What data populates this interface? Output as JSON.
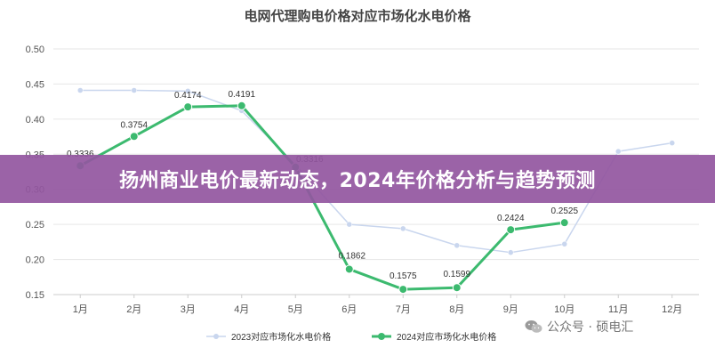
{
  "banner": {
    "text": "扬州商业电价最新动态，2024年价格分析与趋势预测"
  },
  "watermark": {
    "text": "公众号 · 硕电汇",
    "icon": "wechat-icon"
  },
  "chart_data": {
    "type": "line",
    "title": "电网代理购电价格对应市场化水电价格",
    "xlabel": "",
    "ylabel": "",
    "categories": [
      "1月",
      "2月",
      "3月",
      "4月",
      "5月",
      "6月",
      "7月",
      "8月",
      "9月",
      "10月",
      "11月",
      "12月"
    ],
    "ylim": [
      0.15,
      0.5
    ],
    "yticks": [
      "0.15",
      "0.20",
      "0.25",
      "0.30",
      "0.35",
      "0.40",
      "0.45",
      "0.50"
    ],
    "grid": true,
    "legend_position": "bottom",
    "series": [
      {
        "name": "2023对应市场化水电价格",
        "color": "#c9d6ee",
        "values": [
          0.441,
          0.441,
          0.44,
          0.412,
          0.335,
          0.25,
          0.244,
          0.22,
          0.21,
          0.222,
          0.354,
          0.366
        ],
        "labels": []
      },
      {
        "name": "2024对应市场化水电价格",
        "color": "#3cba6f",
        "values": [
          0.3336,
          0.3754,
          0.4174,
          0.4191,
          0.3316,
          0.1862,
          0.1575,
          0.1599,
          0.2424,
          0.2525,
          null,
          null
        ],
        "labels": [
          "0.3336",
          "0.3754",
          "0.4174",
          "0.4191",
          "0.3316",
          "0.1862",
          "0.1575",
          "0.1599",
          "0.2424",
          "0.2525",
          null,
          null
        ]
      }
    ]
  }
}
